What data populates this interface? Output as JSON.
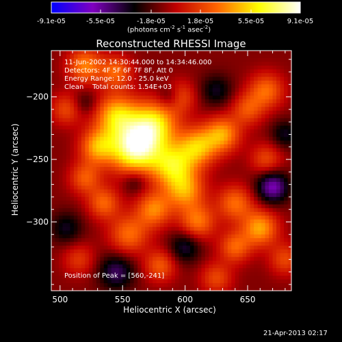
{
  "chart_data": {
    "type": "heatmap",
    "title": "Reconstructed RHESSI Image",
    "xlabel": "Heliocentric X (arcsec)",
    "ylabel": "Heliocentric Y (arcsec)",
    "xlim": [
      493,
      685
    ],
    "ylim": [
      -355,
      -163
    ],
    "x_ticks": [
      500,
      550,
      600,
      650
    ],
    "y_ticks": [
      -200,
      -250,
      -300
    ],
    "colorbar": {
      "range": [
        -9.1e-05,
        9.1e-05
      ],
      "tick_labels": [
        "-9.1e-05",
        "-5.5e-05",
        "-1.8e-05",
        "1.8e-05",
        "5.5e-05",
        "9.1e-05"
      ],
      "tick_values": [
        -9.1e-05,
        -5.5e-05,
        -1.8e-05,
        1.8e-05,
        5.5e-05,
        9.1e-05
      ],
      "unit_label": "(photons cm-2 s-1 asec-2)",
      "colors": [
        "#0000ff",
        "#8000c0",
        "#000000",
        "#c00000",
        "#ff6600",
        "#ffff00",
        "#ffffff"
      ]
    },
    "annotations": [
      "11-Jun-2002 14:30:44.000 to 14:34:46.000",
      "Detectors: 4F 5F 6F 7F 8F, Att 0",
      "Energy Range: 12.0 - 25.0 keV",
      "Clean    Total counts: 1.54E+03"
    ],
    "peak_label": "Position of Peak = [560,-241]",
    "blobs": [
      {
        "x": 560,
        "y": -241,
        "amp": 9.1e-05,
        "sigma": 14
      },
      {
        "x": 575,
        "y": -222,
        "amp": 6.5e-05,
        "sigma": 13
      },
      {
        "x": 545,
        "y": -215,
        "amp": 5.8e-05,
        "sigma": 12
      },
      {
        "x": 530,
        "y": -240,
        "amp": 5e-05,
        "sigma": 10
      },
      {
        "x": 590,
        "y": -255,
        "amp": 6e-05,
        "sigma": 12
      },
      {
        "x": 610,
        "y": -240,
        "amp": 5.5e-05,
        "sigma": 11
      },
      {
        "x": 630,
        "y": -230,
        "amp": 5e-05,
        "sigma": 10
      },
      {
        "x": 600,
        "y": -275,
        "amp": 4.8e-05,
        "sigma": 11
      },
      {
        "x": 575,
        "y": -290,
        "amp": 4.5e-05,
        "sigma": 10
      },
      {
        "x": 555,
        "y": -310,
        "amp": 4e-05,
        "sigma": 11
      },
      {
        "x": 535,
        "y": -285,
        "amp": 3.8e-05,
        "sigma": 9
      },
      {
        "x": 520,
        "y": -265,
        "amp": 3.5e-05,
        "sigma": 9
      },
      {
        "x": 610,
        "y": -300,
        "amp": 4.2e-05,
        "sigma": 10
      },
      {
        "x": 640,
        "y": -285,
        "amp": 4e-05,
        "sigma": 10
      },
      {
        "x": 660,
        "y": -305,
        "amp": 5.2e-05,
        "sigma": 10
      },
      {
        "x": 640,
        "y": -320,
        "amp": 3.8e-05,
        "sigma": 9
      },
      {
        "x": 520,
        "y": -175,
        "amp": 4.5e-05,
        "sigma": 10
      },
      {
        "x": 545,
        "y": -180,
        "amp": 3.8e-05,
        "sigma": 9
      },
      {
        "x": 665,
        "y": -195,
        "amp": 4e-05,
        "sigma": 10
      },
      {
        "x": 650,
        "y": -210,
        "amp": 3.2e-05,
        "sigma": 9
      },
      {
        "x": 505,
        "y": -210,
        "amp": 3e-05,
        "sigma": 9
      },
      {
        "x": 580,
        "y": -335,
        "amp": 3.5e-05,
        "sigma": 9
      },
      {
        "x": 625,
        "y": -345,
        "amp": 3e-05,
        "sigma": 9
      },
      {
        "x": 680,
        "y": -330,
        "amp": 3e-05,
        "sigma": 9
      },
      {
        "x": 515,
        "y": -330,
        "amp": 2.5e-05,
        "sigma": 9
      },
      {
        "x": 665,
        "y": -250,
        "amp": 3e-05,
        "sigma": 9
      },
      {
        "x": 595,
        "y": -200,
        "amp": 3.5e-05,
        "sigma": 9
      },
      {
        "x": 670,
        "y": -272,
        "amp": -5e-05,
        "sigma": 9
      },
      {
        "x": 588,
        "y": -200,
        "amp": -3e-05,
        "sigma": 7
      },
      {
        "x": 545,
        "y": -340,
        "amp": -3.5e-05,
        "sigma": 10
      },
      {
        "x": 600,
        "y": -320,
        "amp": -3e-05,
        "sigma": 9
      },
      {
        "x": 505,
        "y": -305,
        "amp": -2.5e-05,
        "sigma": 9
      },
      {
        "x": 625,
        "y": -195,
        "amp": -2.5e-05,
        "sigma": 9
      },
      {
        "x": 560,
        "y": -268,
        "amp": -2e-05,
        "sigma": 7
      },
      {
        "x": 680,
        "y": -230,
        "amp": -2.5e-05,
        "sigma": 8
      },
      {
        "x": 520,
        "y": -205,
        "amp": -1.8e-05,
        "sigma": 7
      }
    ],
    "background": -1e-05
  },
  "timestamp": "21-Apr-2013 02:17"
}
